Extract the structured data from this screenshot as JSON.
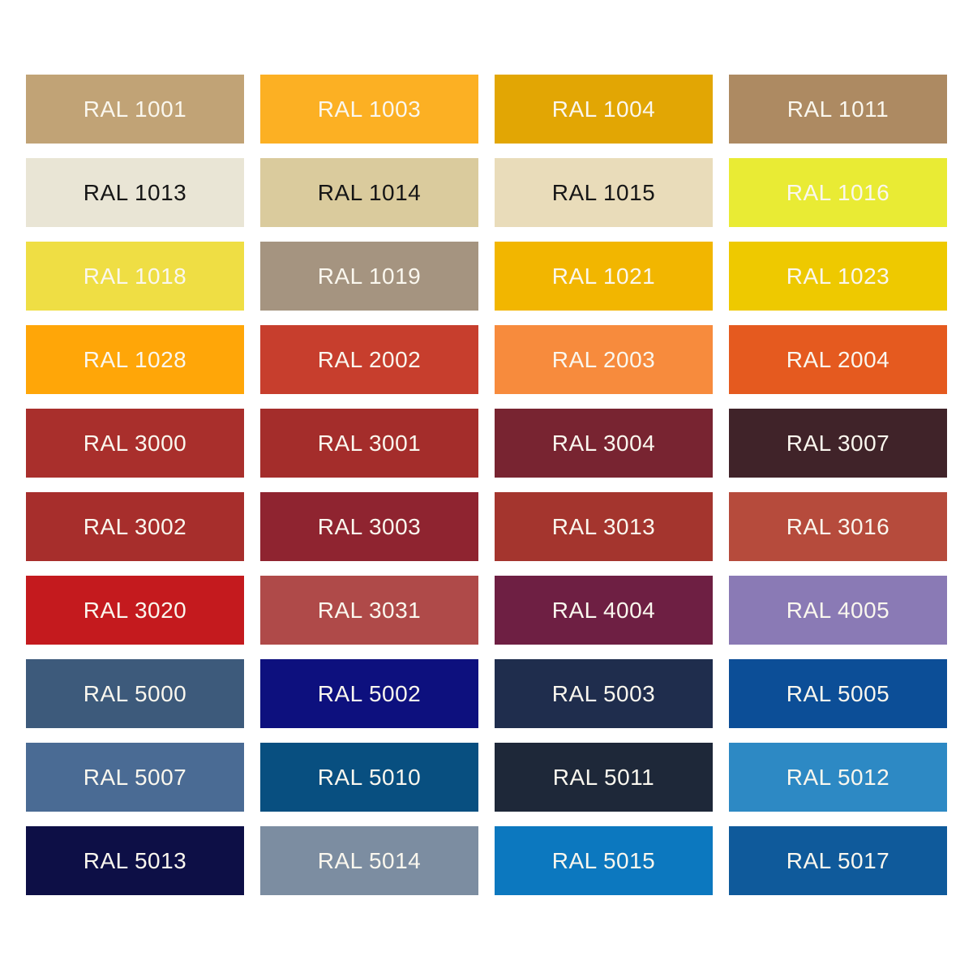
{
  "page": {
    "background": "#ffffff"
  },
  "text_colors": {
    "light": "#FAF7EE",
    "dark": "#161616"
  },
  "swatches": [
    {
      "code": "RAL 1001",
      "color": "#C1A376",
      "text": "light"
    },
    {
      "code": "RAL 1003",
      "color": "#FCB023",
      "text": "light"
    },
    {
      "code": "RAL 1004",
      "color": "#E2A604",
      "text": "light"
    },
    {
      "code": "RAL 1011",
      "color": "#AD8A62",
      "text": "light"
    },
    {
      "code": "RAL 1013",
      "color": "#E9E5D5",
      "text": "dark"
    },
    {
      "code": "RAL 1014",
      "color": "#DACB9D",
      "text": "dark"
    },
    {
      "code": "RAL 1015",
      "color": "#E9DCBA",
      "text": "dark"
    },
    {
      "code": "RAL 1016",
      "color": "#E9EB34",
      "text": "light"
    },
    {
      "code": "RAL 1018",
      "color": "#EFDE44",
      "text": "light"
    },
    {
      "code": "RAL 1019",
      "color": "#A59480",
      "text": "light"
    },
    {
      "code": "RAL 1021",
      "color": "#F2B600",
      "text": "light"
    },
    {
      "code": "RAL 1023",
      "color": "#EEC900",
      "text": "light"
    },
    {
      "code": "RAL 1028",
      "color": "#FFA608",
      "text": "light"
    },
    {
      "code": "RAL 2002",
      "color": "#C73E2D",
      "text": "light"
    },
    {
      "code": "RAL 2003",
      "color": "#F78B3D",
      "text": "light"
    },
    {
      "code": "RAL 2004",
      "color": "#E55A1F",
      "text": "light"
    },
    {
      "code": "RAL 3000",
      "color": "#A92F2C",
      "text": "light"
    },
    {
      "code": "RAL 3001",
      "color": "#A42D2B",
      "text": "light"
    },
    {
      "code": "RAL 3004",
      "color": "#782431",
      "text": "light"
    },
    {
      "code": "RAL 3007",
      "color": "#402329",
      "text": "light"
    },
    {
      "code": "RAL 3002",
      "color": "#A72E2C",
      "text": "light"
    },
    {
      "code": "RAL 3003",
      "color": "#8F2430",
      "text": "light"
    },
    {
      "code": "RAL 3013",
      "color": "#A4352E",
      "text": "light"
    },
    {
      "code": "RAL 3016",
      "color": "#B64B3C",
      "text": "light"
    },
    {
      "code": "RAL 3020",
      "color": "#C41A1E",
      "text": "light"
    },
    {
      "code": "RAL 3031",
      "color": "#AF4A49",
      "text": "light"
    },
    {
      "code": "RAL 4004",
      "color": "#6E1F43",
      "text": "light"
    },
    {
      "code": "RAL 4005",
      "color": "#8A7AB5",
      "text": "light"
    },
    {
      "code": "RAL 5000",
      "color": "#3D5A7B",
      "text": "light"
    },
    {
      "code": "RAL 5002",
      "color": "#0D107E",
      "text": "light"
    },
    {
      "code": "RAL 5003",
      "color": "#1F2D4D",
      "text": "light"
    },
    {
      "code": "RAL 5005",
      "color": "#0C4E97",
      "text": "light"
    },
    {
      "code": "RAL 5007",
      "color": "#4A6B94",
      "text": "light"
    },
    {
      "code": "RAL 5010",
      "color": "#084F80",
      "text": "light"
    },
    {
      "code": "RAL 5011",
      "color": "#1E2839",
      "text": "light"
    },
    {
      "code": "RAL 5012",
      "color": "#2D89C4",
      "text": "light"
    },
    {
      "code": "RAL 5013",
      "color": "#0D0F46",
      "text": "light"
    },
    {
      "code": "RAL 5014",
      "color": "#7C8DA1",
      "text": "light"
    },
    {
      "code": "RAL 5015",
      "color": "#0C78BF",
      "text": "light"
    },
    {
      "code": "RAL 5017",
      "color": "#0F5A9B",
      "text": "light"
    }
  ]
}
